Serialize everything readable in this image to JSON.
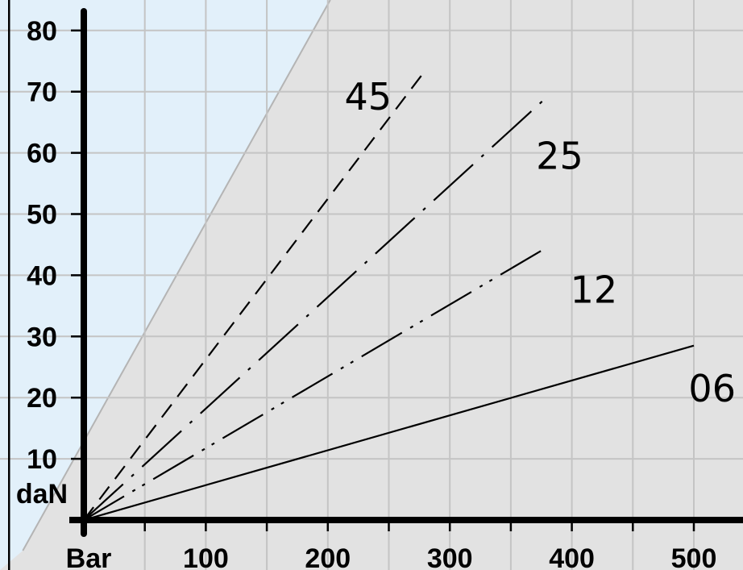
{
  "chart_data": {
    "type": "line",
    "xlabel": "Bar",
    "ylabel": "daN",
    "xlim": [
      0,
      540
    ],
    "ylim": [
      0,
      85
    ],
    "x_ticks": [
      100,
      200,
      300,
      400,
      500
    ],
    "y_ticks": [
      10,
      20,
      30,
      40,
      50,
      60,
      70,
      80
    ],
    "x_grid_step": 50,
    "y_grid_step": 10,
    "grid": true,
    "colors": {
      "grey_zone": "#e2e2e2",
      "blue_zone": "#e2f0fa",
      "zone_boundary": "#b4b4b4",
      "grid": "#c4c4c4",
      "axis": "#000000"
    },
    "zone_boundary": [
      [
        -50,
        -5
      ],
      [
        202,
        85
      ]
    ],
    "series": [
      {
        "name": "45",
        "dash": "dashed",
        "points": [
          [
            0,
            0
          ],
          [
            280,
            73.5
          ]
        ],
        "label_at": [
          233,
          69.2
        ]
      },
      {
        "name": "25",
        "dash": "dash-dot",
        "points": [
          [
            0,
            0
          ],
          [
            380,
            69.2
          ]
        ],
        "label_at": [
          390,
          59.5
        ]
      },
      {
        "name": "12",
        "dash": "dash-dot-dot",
        "points": [
          [
            0,
            0
          ],
          [
            380,
            44.6
          ]
        ],
        "label_at": [
          418,
          37.6
        ]
      },
      {
        "name": "06",
        "dash": "solid",
        "points": [
          [
            0,
            0
          ],
          [
            500,
            28.5
          ]
        ],
        "label_at": [
          515,
          21.5
        ]
      }
    ]
  }
}
